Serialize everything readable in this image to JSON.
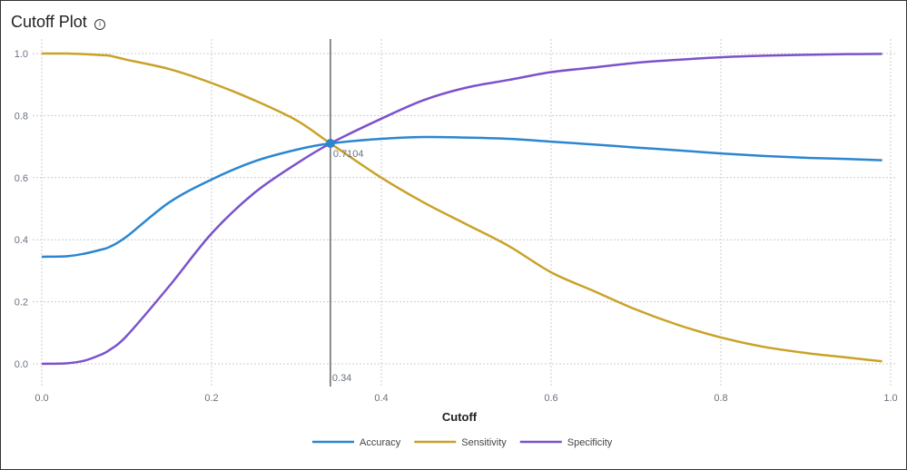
{
  "chart_data": {
    "type": "line",
    "title": "Cutoff Plot",
    "xlabel": "Cutoff",
    "ylabel": "",
    "xlim": [
      0,
      1
    ],
    "ylim": [
      0,
      1
    ],
    "xticks": [
      "0.0",
      "0.2",
      "0.4",
      "0.6",
      "0.8",
      "1.0"
    ],
    "yticks": [
      "0.0",
      "0.2",
      "0.4",
      "0.6",
      "0.8",
      "1.0"
    ],
    "grid": true,
    "legend_position": "bottom",
    "cutoff_marker": {
      "x": 0.34,
      "label": "0.34",
      "y": 0.7104,
      "value_label": "0.7104"
    },
    "x": [
      0,
      0.03,
      0.05,
      0.07,
      0.08,
      0.1,
      0.15,
      0.2,
      0.25,
      0.3,
      0.34,
      0.4,
      0.45,
      0.5,
      0.55,
      0.6,
      0.65,
      0.7,
      0.75,
      0.8,
      0.85,
      0.9,
      0.95,
      0.99
    ],
    "series": [
      {
        "name": "Accuracy",
        "color": "#2b86d1",
        "values": [
          0.345,
          0.347,
          0.355,
          0.368,
          0.377,
          0.41,
          0.52,
          0.594,
          0.652,
          0.69,
          0.7104,
          0.725,
          0.731,
          0.729,
          0.725,
          0.716,
          0.707,
          0.697,
          0.688,
          0.678,
          0.67,
          0.664,
          0.66,
          0.656
        ]
      },
      {
        "name": "Sensitivity",
        "color": "#c9a227",
        "values": [
          1.0,
          1.0,
          0.998,
          0.995,
          0.993,
          0.98,
          0.95,
          0.905,
          0.85,
          0.785,
          0.7104,
          0.6,
          0.52,
          0.45,
          0.38,
          0.295,
          0.235,
          0.175,
          0.125,
          0.085,
          0.055,
          0.035,
          0.02,
          0.008
        ]
      },
      {
        "name": "Specificity",
        "color": "#7b52cc",
        "values": [
          0,
          0.002,
          0.01,
          0.03,
          0.045,
          0.09,
          0.25,
          0.42,
          0.55,
          0.645,
          0.7104,
          0.79,
          0.85,
          0.89,
          0.915,
          0.94,
          0.955,
          0.97,
          0.98,
          0.988,
          0.993,
          0.996,
          0.998,
          0.999
        ]
      }
    ]
  }
}
